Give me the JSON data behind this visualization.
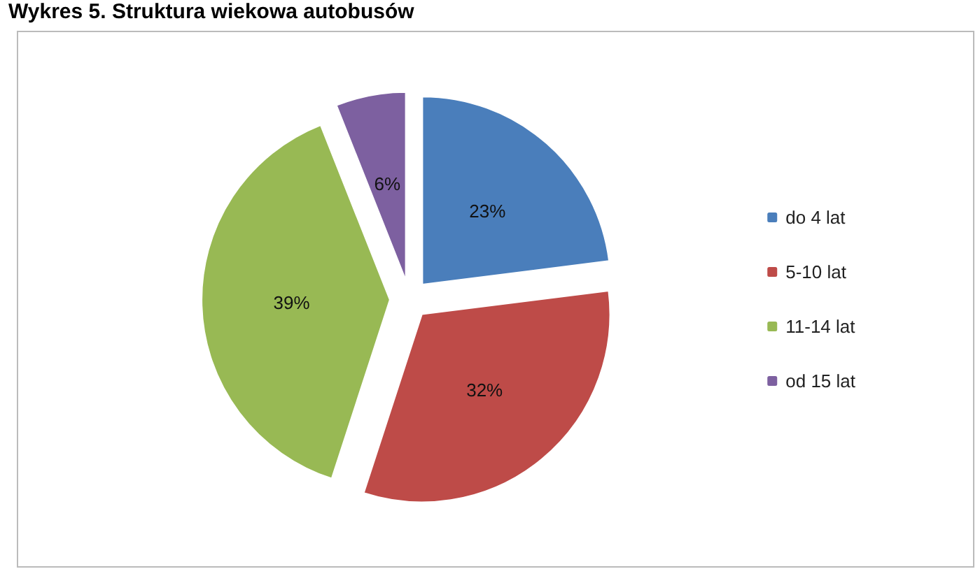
{
  "chart_data": {
    "type": "pie",
    "title": "Wykres 5.  Struktura wiekowa autobusów",
    "categories": [
      "do 4 lat",
      "5-10 lat",
      "11-14 lat",
      "od 15 lat"
    ],
    "values": [
      23,
      32,
      39,
      6
    ],
    "colors": [
      "#4a7ebb",
      "#be4b48",
      "#98b954",
      "#7d60a0"
    ],
    "value_labels": [
      "23%",
      "32%",
      "39%",
      "6%"
    ],
    "legend": "right"
  }
}
